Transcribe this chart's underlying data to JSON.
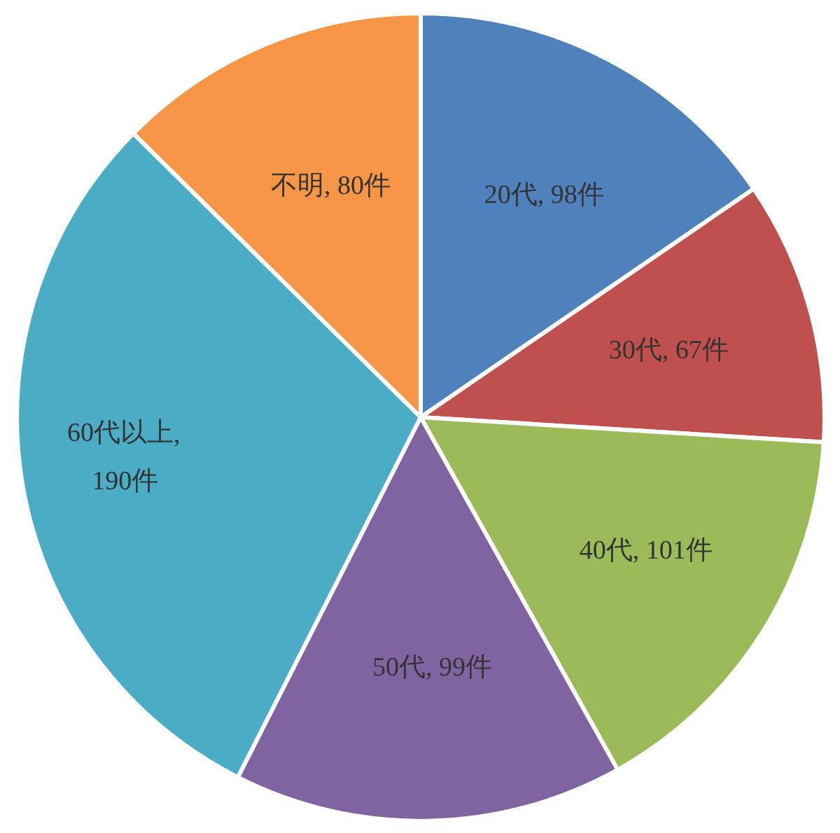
{
  "chart_data": {
    "type": "pie",
    "categories": [
      "20代",
      "30代",
      "40代",
      "50代",
      "60代以上",
      "不明"
    ],
    "values": [
      98,
      67,
      101,
      99,
      190,
      80
    ],
    "colors": [
      "#4f81bd",
      "#c0504d",
      "#9bbb59",
      "#8064a2",
      "#4bacc6",
      "#f79646"
    ],
    "value_labels": [
      ", 98件",
      ", 67件",
      ", 101件",
      ", 99件",
      ", 190件",
      ", 80件"
    ]
  }
}
